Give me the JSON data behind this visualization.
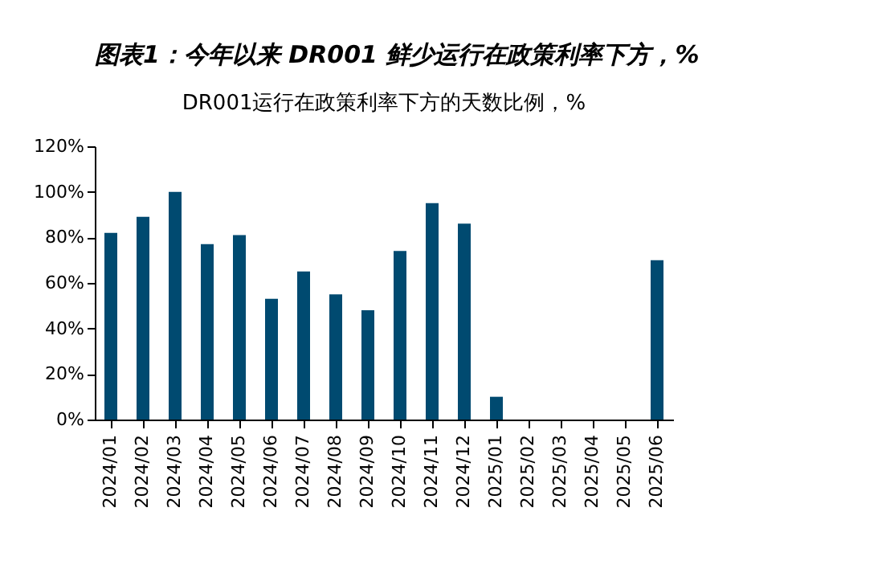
{
  "chart_data": {
    "type": "bar",
    "title": "图表1：今年以来 DR001 鲜少运行在政策利率下方，%",
    "subtitle": "DR001运行在政策利率下方的天数比例，%",
    "categories": [
      "2024/01",
      "2024/02",
      "2024/03",
      "2024/04",
      "2024/05",
      "2024/06",
      "2024/07",
      "2024/08",
      "2024/09",
      "2024/10",
      "2024/11",
      "2024/12",
      "2025/01",
      "2025/02",
      "2025/03",
      "2025/04",
      "2025/05",
      "2025/06"
    ],
    "values": [
      82,
      89,
      100,
      77,
      81,
      53,
      65,
      55,
      48,
      74,
      95,
      86,
      10,
      0,
      0,
      0,
      0,
      70
    ],
    "color": "#004a70",
    "ylim": [
      0,
      120
    ],
    "yticks": [
      {
        "value": 0,
        "label": "0%"
      },
      {
        "value": 20,
        "label": "20%"
      },
      {
        "value": 40,
        "label": "40%"
      },
      {
        "value": 60,
        "label": "60%"
      },
      {
        "value": 80,
        "label": "80%"
      },
      {
        "value": 100,
        "label": "100%"
      },
      {
        "value": 120,
        "label": "120%"
      }
    ],
    "grid": false
  }
}
